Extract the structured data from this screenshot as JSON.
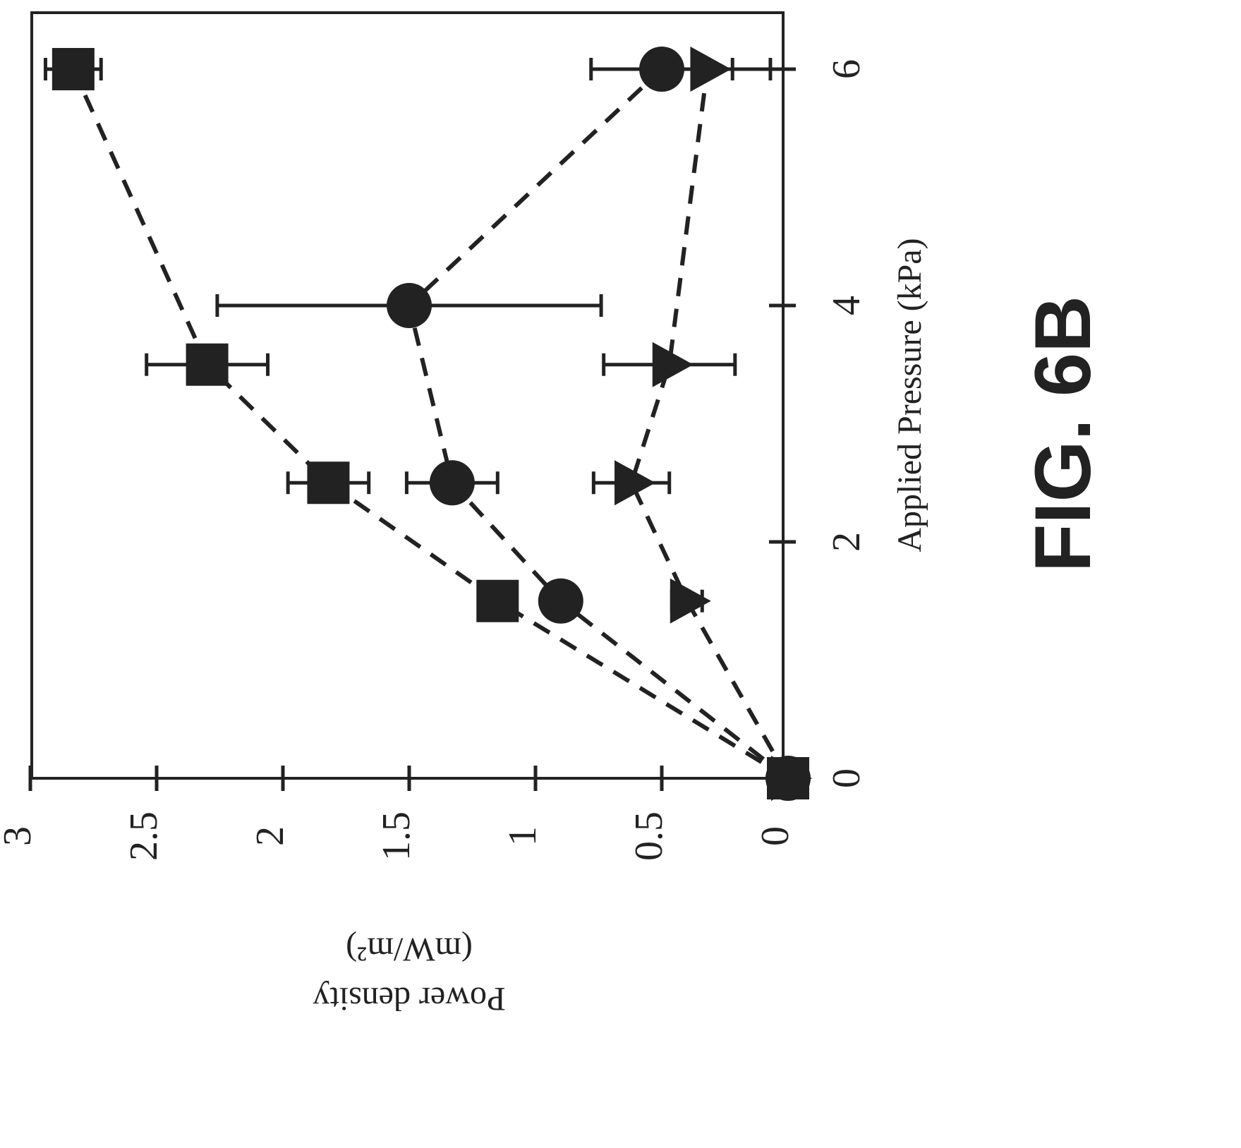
{
  "figure": {
    "label": "FIG. 6B"
  },
  "chart_data": {
    "type": "scatter",
    "orientation": "rotated-90-clockwise",
    "title": "",
    "xlabel": "Applied Pressure (kPa)",
    "ylabel_line1": "Power density",
    "ylabel_line2": "(mW/m²)",
    "xlim": [
      0,
      6.5
    ],
    "ylim": [
      0,
      3
    ],
    "x_ticks": [
      0,
      2,
      4,
      6
    ],
    "x_tick_labels": [
      "0",
      "2",
      "4",
      "6"
    ],
    "y_ticks": [
      0,
      0.5,
      1,
      1.5,
      2,
      2.5,
      3
    ],
    "y_tick_labels": [
      "0",
      "0.5",
      "1",
      "1.5",
      "2",
      "2.5",
      "3"
    ],
    "line_style": "dashed",
    "grid": false,
    "legend": "none",
    "colors": {
      "ink": "#222222"
    },
    "series": [
      {
        "marker": "square",
        "points": [
          {
            "x": 0,
            "y": 0
          },
          {
            "x": 1.5,
            "y": 1.15
          },
          {
            "x": 2.5,
            "y": 1.82,
            "err": 0.16
          },
          {
            "x": 3.5,
            "y": 2.3,
            "err": 0.24
          },
          {
            "x": 6,
            "y": 2.83,
            "err": 0.11
          }
        ]
      },
      {
        "marker": "circle",
        "points": [
          {
            "x": 0,
            "y": 0
          },
          {
            "x": 1.5,
            "y": 0.9
          },
          {
            "x": 2.5,
            "y": 1.33,
            "err": 0.18
          },
          {
            "x": 4,
            "y": 1.5,
            "err": 0.76
          },
          {
            "x": 6,
            "y": 0.5,
            "err": 0.28
          }
        ]
      },
      {
        "marker": "triangle",
        "points": [
          {
            "x": 0,
            "y": 0
          },
          {
            "x": 1.5,
            "y": 0.4,
            "err": 0.06
          },
          {
            "x": 2.5,
            "y": 0.62,
            "err": 0.15
          },
          {
            "x": 3.5,
            "y": 0.47,
            "err": 0.26
          },
          {
            "x": 6,
            "y": 0.32,
            "err": 0.25
          }
        ]
      }
    ]
  }
}
